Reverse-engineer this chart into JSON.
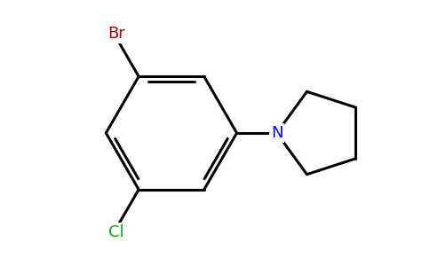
{
  "background_color": "#ffffff",
  "bond_color": "#000000",
  "bond_width": 2.2,
  "br_color": "#aa0000",
  "cl_color": "#00aa00",
  "n_color": "#0000ff",
  "br_label": "Br",
  "cl_label": "Cl",
  "n_label": "N",
  "font_size": 13,
  "figsize": [
    4.84,
    3.0
  ],
  "dpi": 100
}
